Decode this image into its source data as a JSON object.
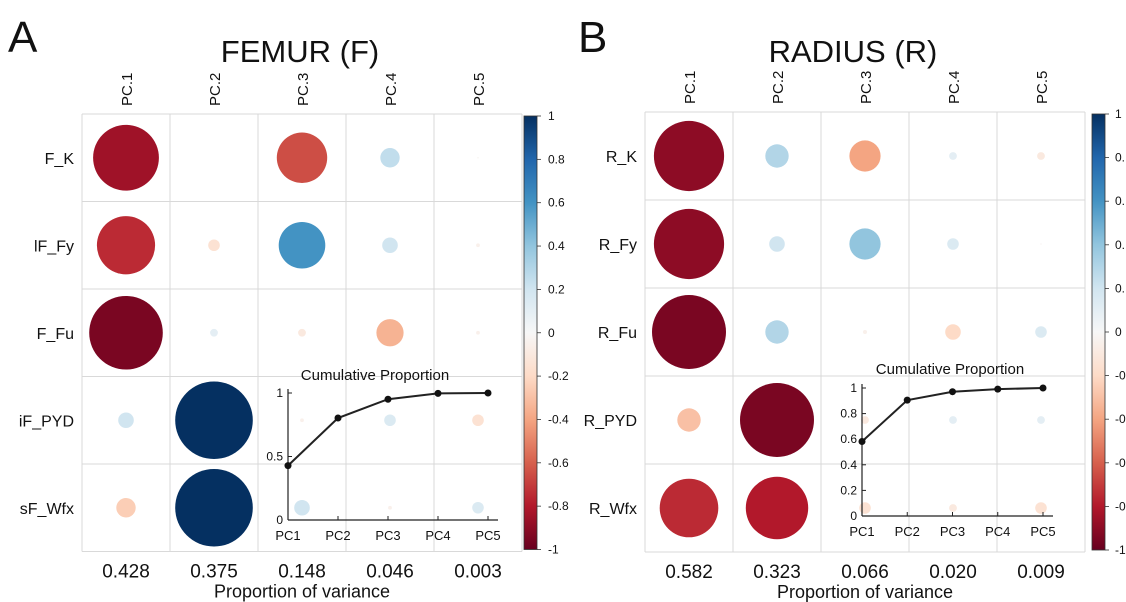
{
  "figure": {
    "panels": [
      {
        "letter": "A",
        "title": "FEMUR (F)"
      },
      {
        "letter": "B",
        "title": "RADIUS (R)"
      }
    ],
    "x_axis_label": "Proportion of variance",
    "colorbar_ticks": [
      "1",
      "0.8",
      "0.6",
      "0.4",
      "0.2",
      "0",
      "-0.2",
      "-0.4",
      "-0.6",
      "-0.8",
      "-1"
    ],
    "colorbar_ticks_b": [
      "1",
      "0.",
      "0.",
      "0.",
      "0.",
      "0",
      "-0.",
      "-0.",
      "-0.",
      "-0.",
      "-1"
    ],
    "colors": {
      "strong_negative": "#67001f",
      "mid_negative": "#d6604d",
      "neutral": "#f7f7f7",
      "mid_positive": "#4393c3",
      "strong_positive": "#053061",
      "grid": "#d9d9d9"
    }
  },
  "chart_data": [
    {
      "type": "heatmap",
      "title": "FEMUR (F)",
      "panel": "A",
      "columns": [
        "PC.1",
        "PC.2",
        "PC.3",
        "PC.4",
        "PC.5"
      ],
      "rows": [
        "F_K",
        "lF_Fy",
        "F_Fu",
        "iF_PYD",
        "sF_Wfx"
      ],
      "values": [
        [
          -0.85,
          0.0,
          -0.65,
          0.25,
          -0.02
        ],
        [
          -0.75,
          -0.15,
          0.6,
          0.2,
          -0.05
        ],
        [
          -0.95,
          0.1,
          -0.1,
          -0.35,
          -0.05
        ],
        [
          0.2,
          1.0,
          -0.05,
          0.15,
          -0.15
        ],
        [
          -0.25,
          1.0,
          0.2,
          -0.05,
          0.15
        ]
      ],
      "proportion_of_variance": [
        "0.428",
        "0.375",
        "0.148",
        "0.046",
        "0.003"
      ],
      "xlabel": "Proportion of variance",
      "colorbar_range": [
        -1,
        1
      ],
      "inset": {
        "type": "line",
        "title": "Cumulative Proportion",
        "x": [
          "PC1",
          "PC2",
          "PC3",
          "PC4",
          "PC5"
        ],
        "values": [
          0.428,
          0.803,
          0.951,
          0.997,
          1.0
        ],
        "ylim": [
          0,
          1
        ],
        "yticks": [
          "0",
          "0.5",
          "1"
        ]
      }
    },
    {
      "type": "heatmap",
      "title": "RADIUS (R)",
      "panel": "B",
      "columns": [
        "PC.1",
        "PC.2",
        "PC.3",
        "PC.4",
        "PC.5"
      ],
      "rows": [
        "R_K",
        "R_Fy",
        "R_Fu",
        "R_PYD",
        "R_Wfx"
      ],
      "values": [
        [
          -0.9,
          0.3,
          -0.4,
          0.1,
          -0.1
        ],
        [
          -0.9,
          0.2,
          0.4,
          0.15,
          -0.02
        ],
        [
          -0.95,
          0.3,
          -0.05,
          -0.2,
          0.15
        ],
        [
          -0.3,
          -0.95,
          -0.1,
          0.1,
          0.1
        ],
        [
          -0.75,
          -0.8,
          -0.15,
          -0.1,
          -0.15
        ]
      ],
      "proportion_of_variance": [
        "0.582",
        "0.323",
        "0.066",
        "0.020",
        "0.009"
      ],
      "xlabel": "Proportion of variance",
      "colorbar_range": [
        -1,
        1
      ],
      "inset": {
        "type": "line",
        "title": "Cumulative Proportion",
        "x": [
          "PC1",
          "PC2",
          "PC3",
          "PC4",
          "PC5"
        ],
        "values": [
          0.582,
          0.905,
          0.971,
          0.991,
          1.0
        ],
        "ylim": [
          0,
          1
        ],
        "yticks": [
          "0",
          "0.2",
          "0.4",
          "0.6",
          "0.8",
          "1"
        ]
      }
    }
  ]
}
